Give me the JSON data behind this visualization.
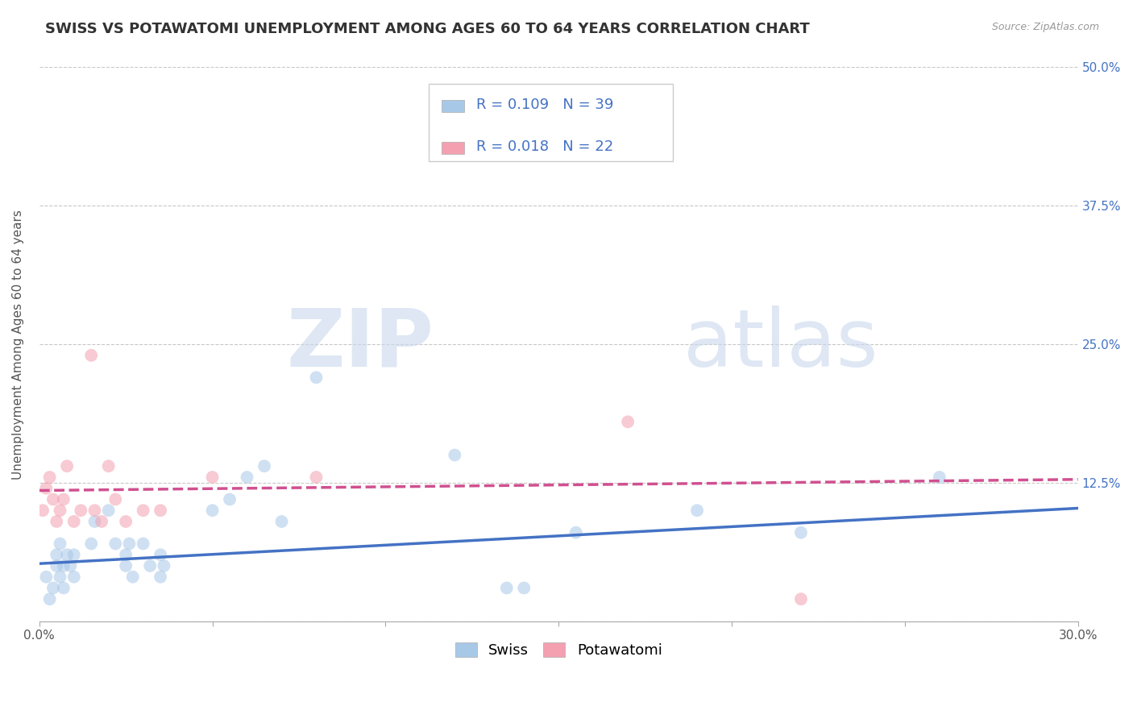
{
  "title": "SWISS VS POTAWATOMI UNEMPLOYMENT AMONG AGES 60 TO 64 YEARS CORRELATION CHART",
  "source": "Source: ZipAtlas.com",
  "ylabel": "Unemployment Among Ages 60 to 64 years",
  "xlim": [
    0.0,
    0.3
  ],
  "ylim": [
    0.0,
    0.5
  ],
  "xticks": [
    0.0,
    0.05,
    0.1,
    0.15,
    0.2,
    0.25,
    0.3
  ],
  "xticklabels": [
    "0.0%",
    "",
    "",
    "",
    "",
    "",
    "30.0%"
  ],
  "yticks": [
    0.0,
    0.125,
    0.25,
    0.375,
    0.5
  ],
  "yticklabels": [
    "",
    "12.5%",
    "25.0%",
    "37.5%",
    "50.0%"
  ],
  "swiss_R": "0.109",
  "swiss_N": "39",
  "potawatomi_R": "0.018",
  "potawatomi_N": "22",
  "swiss_color": "#a8c8e8",
  "potawatomi_color": "#f4a0b0",
  "swiss_line_color": "#4472c4",
  "potawatomi_line_color": "#d05090",
  "grid_color": "#c8c8c8",
  "background_color": "#ffffff",
  "swiss_x": [
    0.002,
    0.003,
    0.004,
    0.005,
    0.005,
    0.006,
    0.006,
    0.007,
    0.007,
    0.008,
    0.009,
    0.01,
    0.01,
    0.015,
    0.016,
    0.02,
    0.022,
    0.025,
    0.025,
    0.026,
    0.027,
    0.03,
    0.032,
    0.035,
    0.035,
    0.036,
    0.05,
    0.055,
    0.06,
    0.065,
    0.07,
    0.08,
    0.12,
    0.135,
    0.14,
    0.155,
    0.19,
    0.22,
    0.26
  ],
  "swiss_y": [
    0.04,
    0.02,
    0.03,
    0.05,
    0.06,
    0.04,
    0.07,
    0.03,
    0.05,
    0.06,
    0.05,
    0.04,
    0.06,
    0.07,
    0.09,
    0.1,
    0.07,
    0.05,
    0.06,
    0.07,
    0.04,
    0.07,
    0.05,
    0.06,
    0.04,
    0.05,
    0.1,
    0.11,
    0.13,
    0.14,
    0.09,
    0.22,
    0.15,
    0.03,
    0.03,
    0.08,
    0.1,
    0.08,
    0.13
  ],
  "potawatomi_x": [
    0.001,
    0.002,
    0.003,
    0.004,
    0.005,
    0.006,
    0.007,
    0.008,
    0.01,
    0.012,
    0.015,
    0.016,
    0.018,
    0.02,
    0.022,
    0.025,
    0.03,
    0.035,
    0.05,
    0.08,
    0.17,
    0.22
  ],
  "potawatomi_y": [
    0.1,
    0.12,
    0.13,
    0.11,
    0.09,
    0.1,
    0.11,
    0.14,
    0.09,
    0.1,
    0.24,
    0.1,
    0.09,
    0.14,
    0.11,
    0.09,
    0.1,
    0.1,
    0.13,
    0.13,
    0.18,
    0.02
  ],
  "swiss_trend_x": [
    0.0,
    0.3
  ],
  "swiss_trend_y": [
    0.052,
    0.102
  ],
  "potawatomi_trend_x": [
    0.0,
    0.3
  ],
  "potawatomi_trend_y": [
    0.118,
    0.128
  ],
  "title_fontsize": 13,
  "label_fontsize": 11,
  "tick_fontsize": 11,
  "legend_fontsize": 13,
  "marker_size": 130,
  "marker_alpha": 0.55,
  "line_width": 2.5
}
